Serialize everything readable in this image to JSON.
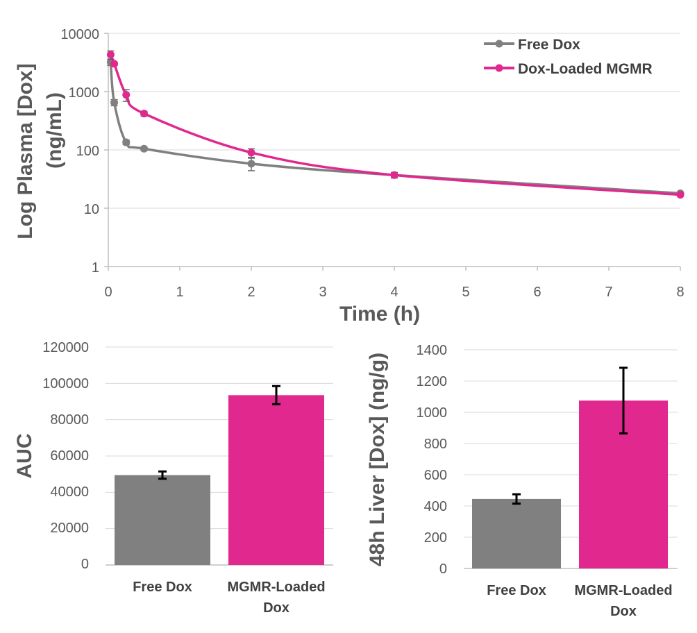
{
  "colors": {
    "free": "#808080",
    "mgmr": "#e0288f",
    "err": "#000000"
  },
  "chart_data": [
    {
      "type": "line",
      "title": "",
      "xlabel": "Time (h)",
      "ylabel_line1": "Log Plasma [Dox]",
      "ylabel_line2": "(ng/mL)",
      "yscale": "log",
      "xlim": [
        0,
        8
      ],
      "ylim": [
        1,
        10000
      ],
      "xticks": [
        "0",
        "1",
        "2",
        "3",
        "4",
        "5",
        "6",
        "7",
        "8"
      ],
      "yticks": [
        "10000",
        "1000",
        "100",
        "10",
        "1"
      ],
      "legend_position": "top-right",
      "series": [
        {
          "name": "Free Dox",
          "color": "#808080",
          "x": [
            0.033,
            0.083,
            0.25,
            0.5,
            2,
            4,
            8
          ],
          "y": [
            3200,
            650,
            135,
            105,
            58,
            37,
            18
          ],
          "err": [
            400,
            80,
            12,
            8,
            14,
            4,
            1
          ]
        },
        {
          "name": "Dox-Loaded MGMR",
          "color": "#e0288f",
          "x": [
            0.033,
            0.083,
            0.25,
            0.5,
            2,
            4,
            8
          ],
          "y": [
            4300,
            3000,
            880,
            420,
            90,
            37,
            17
          ],
          "err": [
            700,
            200,
            200,
            40,
            15,
            4,
            1
          ]
        }
      ]
    },
    {
      "type": "bar",
      "ylabel": "AUC",
      "ylim": [
        0,
        120000
      ],
      "yticks": [
        "120000",
        "100000",
        "80000",
        "60000",
        "40000",
        "20000",
        "0"
      ],
      "categories": [
        [
          "Free Dox"
        ],
        [
          "MGMR-Loaded",
          "Dox"
        ]
      ],
      "values": [
        49500,
        93500
      ],
      "err": [
        2000,
        5000
      ]
    },
    {
      "type": "bar",
      "ylabel": "48h Liver [Dox] (ng/g)",
      "ylim": [
        0,
        1400
      ],
      "yticks": [
        "1400",
        "1200",
        "1000",
        "800",
        "600",
        "400",
        "200",
        "0"
      ],
      "categories": [
        [
          "Free Dox"
        ],
        [
          "MGMR-Loaded",
          "Dox"
        ]
      ],
      "values": [
        445,
        1075
      ],
      "err": [
        30,
        210
      ]
    }
  ]
}
